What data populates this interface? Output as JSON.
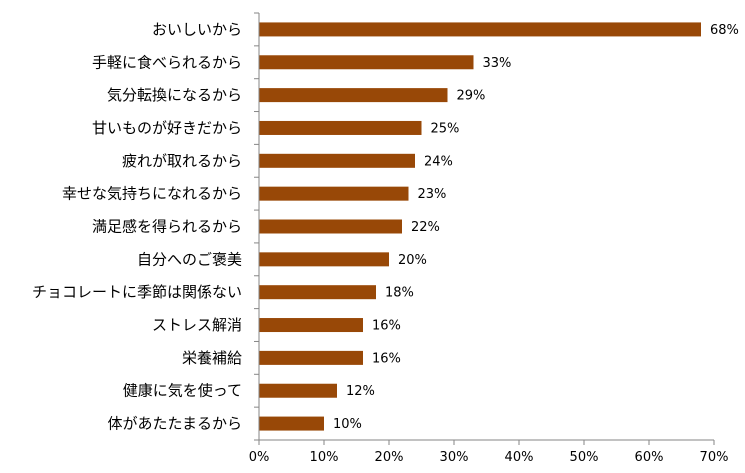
{
  "chart_data": {
    "type": "bar",
    "orientation": "horizontal",
    "categories": [
      "おいしいから",
      "手軽に食べられるから",
      "気分転換になるから",
      "甘いものが好きだから",
      "疲れが取れるから",
      "幸せな気持ちになれるから",
      "満足感を得られるから",
      "自分へのご褒美",
      "チョコレートに季節は関係ない",
      "ストレス解消",
      "栄養補給",
      "健康に気を使って",
      "体があたたまるから"
    ],
    "values": [
      68,
      33,
      29,
      25,
      24,
      23,
      22,
      20,
      18,
      16,
      16,
      12,
      10
    ],
    "value_labels": [
      "68%",
      "33%",
      "29%",
      "25%",
      "24%",
      "23%",
      "22%",
      "20%",
      "18%",
      "16%",
      "16%",
      "12%",
      "10%"
    ],
    "x_ticks": [
      0,
      10,
      20,
      30,
      40,
      50,
      60,
      70
    ],
    "x_tick_labels": [
      "0%",
      "10%",
      "20%",
      "30%",
      "40%",
      "50%",
      "60%",
      "70%"
    ],
    "xlim": [
      0,
      70
    ],
    "title": "",
    "xlabel": "",
    "ylabel": "",
    "grid": false,
    "legend": "none",
    "bar_color": "#984807"
  }
}
